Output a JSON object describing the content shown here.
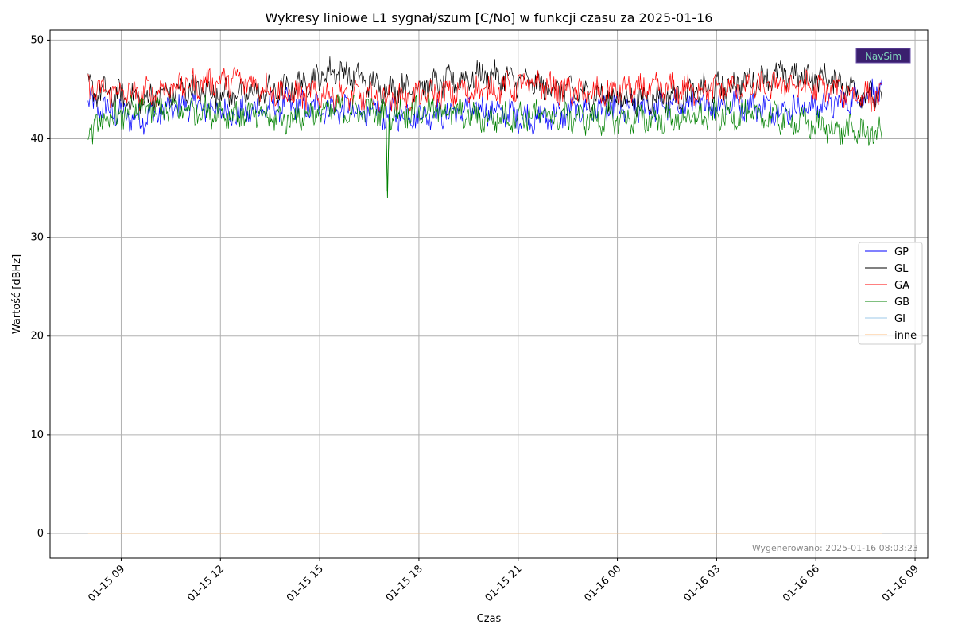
{
  "chart_data": {
    "type": "line",
    "title": "Wykresy liniowe L1 sygnał/szum [C/No] w funkcji czasu za 2025-01-16",
    "xlabel": "Czas",
    "ylabel": "Wartość [dBHz]",
    "ylim": [
      -2.5,
      51
    ],
    "xlim": [
      "2025-01-15 06:51",
      "2025-01-16 09:23"
    ],
    "yticks": [
      0,
      10,
      20,
      30,
      40,
      50
    ],
    "xticks": [
      {
        "t": "2025-01-15 09:00",
        "label": "01-15 09"
      },
      {
        "t": "2025-01-15 12:00",
        "label": "01-15 12"
      },
      {
        "t": "2025-01-15 15:00",
        "label": "01-15 15"
      },
      {
        "t": "2025-01-15 18:00",
        "label": "01-15 18"
      },
      {
        "t": "2025-01-15 21:00",
        "label": "01-15 21"
      },
      {
        "t": "2025-01-16 00:00",
        "label": "01-16 00"
      },
      {
        "t": "2025-01-16 03:00",
        "label": "01-16 03"
      },
      {
        "t": "2025-01-16 06:00",
        "label": "01-16 06"
      },
      {
        "t": "2025-01-16 09:00",
        "label": "01-16 09"
      }
    ],
    "grid": true,
    "legend_position": "right",
    "series": [
      {
        "name": "GP",
        "color": "#0000ff",
        "x": [
          "2025-01-15 08:00",
          "2025-01-15 09:30",
          "2025-01-15 11:00",
          "2025-01-15 12:30",
          "2025-01-15 14:00",
          "2025-01-15 15:30",
          "2025-01-15 17:00",
          "2025-01-15 18:30",
          "2025-01-15 20:00",
          "2025-01-15 21:30",
          "2025-01-15 23:00",
          "2025-01-16 00:30",
          "2025-01-16 02:00",
          "2025-01-16 03:30",
          "2025-01-16 05:00",
          "2025-01-16 06:30",
          "2025-01-16 08:00"
        ],
        "y": [
          43.5,
          42,
          43.5,
          42.5,
          43.5,
          43,
          42.5,
          42.5,
          43,
          42,
          43,
          43,
          43.5,
          43.5,
          43,
          43.5,
          45
        ]
      },
      {
        "name": "GL",
        "color": "#000000",
        "x": [
          "2025-01-15 08:00",
          "2025-01-15 09:30",
          "2025-01-15 11:00",
          "2025-01-15 12:30",
          "2025-01-15 14:00",
          "2025-01-15 15:30",
          "2025-01-15 17:00",
          "2025-01-15 18:30",
          "2025-01-15 20:00",
          "2025-01-15 21:30",
          "2025-01-15 23:00",
          "2025-01-16 00:30",
          "2025-01-16 02:00",
          "2025-01-16 03:30",
          "2025-01-16 05:00",
          "2025-01-16 06:30",
          "2025-01-16 08:00"
        ],
        "y": [
          45,
          44,
          45,
          44.5,
          45,
          47,
          45,
          45.5,
          46.5,
          45.5,
          44.5,
          44,
          44.5,
          45.5,
          46.5,
          46,
          44
        ]
      },
      {
        "name": "GA",
        "color": "#ff0000",
        "x": [
          "2025-01-15 08:00",
          "2025-01-15 09:30",
          "2025-01-15 11:00",
          "2025-01-15 12:30",
          "2025-01-15 14:00",
          "2025-01-15 15:30",
          "2025-01-15 17:00",
          "2025-01-15 18:30",
          "2025-01-15 20:00",
          "2025-01-15 21:30",
          "2025-01-15 23:00",
          "2025-01-16 00:30",
          "2025-01-16 02:00",
          "2025-01-16 03:30",
          "2025-01-16 05:00",
          "2025-01-16 06:30",
          "2025-01-16 08:00"
        ],
        "y": [
          45,
          44.5,
          45.5,
          46,
          44.5,
          44.5,
          44,
          44.5,
          45,
          45.5,
          44.5,
          45,
          45,
          45,
          45.5,
          45,
          44
        ]
      },
      {
        "name": "GB",
        "color": "#008000",
        "x": [
          "2025-01-15 08:00",
          "2025-01-15 09:30",
          "2025-01-15 11:00",
          "2025-01-15 12:30",
          "2025-01-15 14:00",
          "2025-01-15 15:30",
          "2025-01-15 17:00",
          "2025-01-15 17:03",
          "2025-01-15 17:06",
          "2025-01-15 18:30",
          "2025-01-15 20:00",
          "2025-01-15 21:30",
          "2025-01-15 23:00",
          "2025-01-16 00:30",
          "2025-01-16 02:00",
          "2025-01-16 03:30",
          "2025-01-16 05:00",
          "2025-01-16 06:30",
          "2025-01-16 08:00"
        ],
        "y": [
          41,
          43,
          43,
          42.5,
          42,
          43,
          42.5,
          34,
          42.5,
          43,
          42,
          42.5,
          42,
          42,
          42,
          42.5,
          42,
          41,
          40.5
        ]
      },
      {
        "name": "GI",
        "color": "#9ecae9",
        "x": [
          "2025-01-15 08:00",
          "2025-01-16 08:00"
        ],
        "y": [
          0,
          0
        ]
      },
      {
        "name": "inne",
        "color": "#ffbf80",
        "x": [
          "2025-01-15 08:00",
          "2025-01-16 08:00"
        ],
        "y": [
          0,
          0
        ]
      }
    ],
    "watermark": "NavSim",
    "footer": "Wygenerowano: 2025-01-16 08:03:23"
  }
}
